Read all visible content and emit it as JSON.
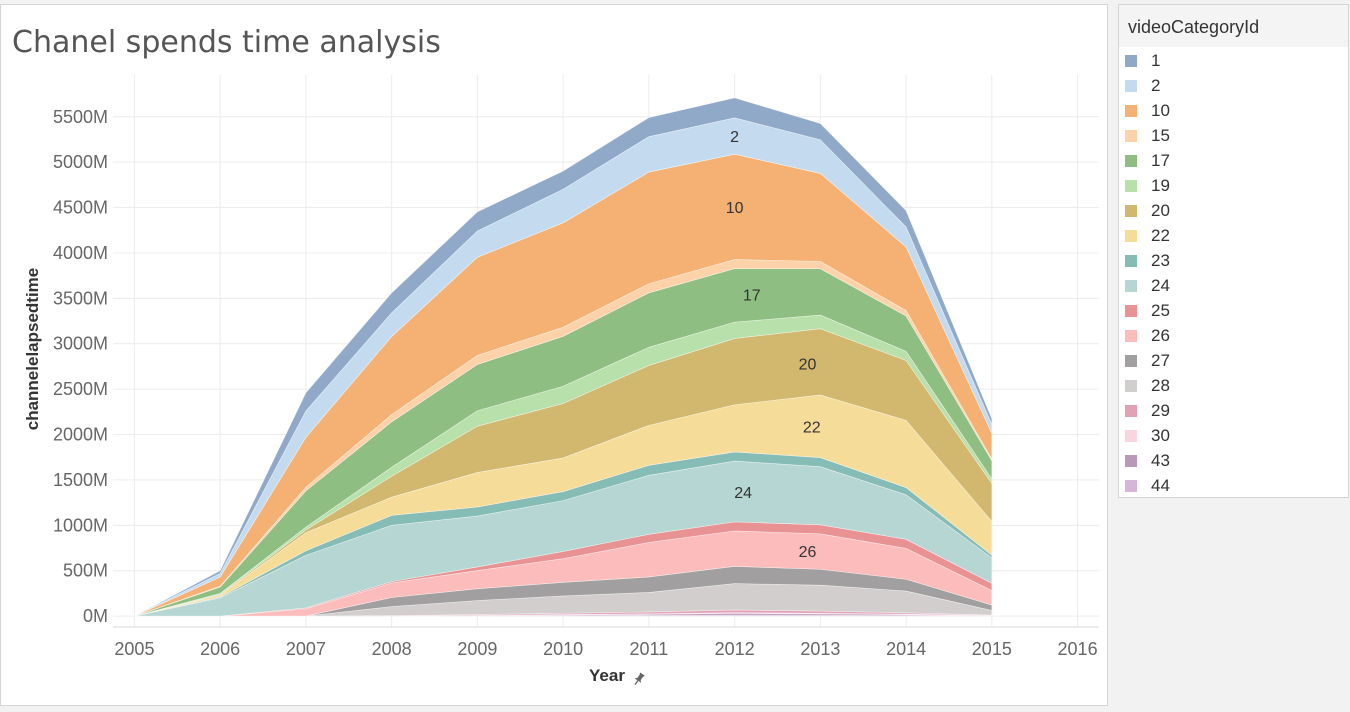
{
  "chart_data": {
    "type": "area",
    "stacked": true,
    "title": "Chanel spends time analysis",
    "xlabel": "Year",
    "ylabel": "channelelapsedtime",
    "x": [
      2005,
      2006,
      2007,
      2008,
      2009,
      2010,
      2011,
      2012,
      2013,
      2014,
      2015
    ],
    "xlim": [
      2004.75,
      2016.25
    ],
    "xticks": [
      "2005",
      "2006",
      "2007",
      "2008",
      "2009",
      "2010",
      "2011",
      "2012",
      "2013",
      "2014",
      "2015",
      "2016"
    ],
    "ylim": [
      -120,
      5960
    ],
    "yticks": [
      "0M",
      "500M",
      "1000M",
      "1500M",
      "2000M",
      "2500M",
      "3000M",
      "3500M",
      "4000M",
      "4500M",
      "5000M",
      "5500M"
    ],
    "unit": "M",
    "grid": true,
    "legend_title": "videoCategoryId",
    "legend_position": "right",
    "series": [
      {
        "name": "44",
        "color": "#d7b5d8",
        "values": [
          0,
          0,
          0,
          0,
          2,
          5,
          8,
          12,
          10,
          6,
          2
        ]
      },
      {
        "name": "43",
        "color": "#b998b8",
        "values": [
          0,
          0,
          0,
          0,
          3,
          8,
          12,
          18,
          15,
          10,
          3
        ]
      },
      {
        "name": "30",
        "color": "#f9d5df",
        "values": [
          0,
          0,
          0,
          0,
          2,
          4,
          6,
          8,
          6,
          5,
          2
        ]
      },
      {
        "name": "29",
        "color": "#e1a2b6",
        "values": [
          0,
          0,
          0,
          5,
          10,
          15,
          20,
          30,
          25,
          15,
          5
        ]
      },
      {
        "name": "28",
        "color": "#d2cece",
        "values": [
          0,
          0,
          0,
          100,
          155,
          190,
          215,
          290,
          285,
          240,
          50
        ]
      },
      {
        "name": "27",
        "color": "#a19f9f",
        "values": [
          0,
          0,
          0,
          100,
          130,
          150,
          170,
          190,
          175,
          130,
          60
        ]
      },
      {
        "name": "26",
        "color": "#fcbcbc",
        "values": [
          0,
          0,
          80,
          160,
          200,
          260,
          380,
          390,
          390,
          340,
          160
        ]
      },
      {
        "name": "25",
        "color": "#e89293",
        "values": [
          0,
          0,
          10,
          15,
          40,
          80,
          90,
          100,
          100,
          100,
          80
        ]
      },
      {
        "name": "24",
        "color": "#b5d6d2",
        "values": [
          0,
          200,
          580,
          620,
          560,
          560,
          650,
          670,
          640,
          490,
          280
        ]
      },
      {
        "name": "23",
        "color": "#86bcb6",
        "values": [
          0,
          10,
          50,
          110,
          100,
          100,
          110,
          100,
          100,
          80,
          30
        ]
      },
      {
        "name": "22",
        "color": "#f6dc99",
        "values": [
          0,
          20,
          200,
          200,
          380,
          370,
          440,
          520,
          690,
          740,
          370
        ]
      },
      {
        "name": "20",
        "color": "#d2b86e",
        "values": [
          0,
          10,
          30,
          230,
          510,
          600,
          660,
          730,
          730,
          660,
          420
        ]
      },
      {
        "name": "19",
        "color": "#b7e0ab",
        "values": [
          0,
          10,
          30,
          100,
          170,
          190,
          200,
          180,
          150,
          100,
          50
        ]
      },
      {
        "name": "17",
        "color": "#8fbe82",
        "values": [
          0,
          70,
          400,
          500,
          510,
          550,
          600,
          590,
          510,
          390,
          200
        ]
      },
      {
        "name": "15",
        "color": "#fdd2a9",
        "values": [
          0,
          10,
          40,
          80,
          100,
          100,
          100,
          100,
          80,
          60,
          20
        ]
      },
      {
        "name": "10",
        "color": "#f5b174",
        "values": [
          0,
          100,
          550,
          860,
          1080,
          1150,
          1230,
          1160,
          970,
          700,
          280
        ]
      },
      {
        "name": "2",
        "color": "#c4dbef",
        "values": [
          0,
          40,
          290,
          260,
          290,
          370,
          390,
          400,
          370,
          220,
          100
        ]
      },
      {
        "name": "1",
        "color": "#91a9c9",
        "values": [
          0,
          30,
          200,
          220,
          210,
          200,
          210,
          220,
          180,
          180,
          60
        ]
      }
    ],
    "legend_order": [
      "1",
      "2",
      "10",
      "15",
      "17",
      "19",
      "20",
      "22",
      "23",
      "24",
      "25",
      "26",
      "27",
      "28",
      "29",
      "30",
      "43",
      "44"
    ],
    "inline_labels": [
      {
        "series": "2",
        "x": 2012
      },
      {
        "series": "10",
        "x": 2012
      },
      {
        "series": "17",
        "x": 2012.2
      },
      {
        "series": "20",
        "x": 2012.85
      },
      {
        "series": "22",
        "x": 2012.9
      },
      {
        "series": "24",
        "x": 2012.1
      },
      {
        "series": "26",
        "x": 2012.85
      }
    ]
  }
}
